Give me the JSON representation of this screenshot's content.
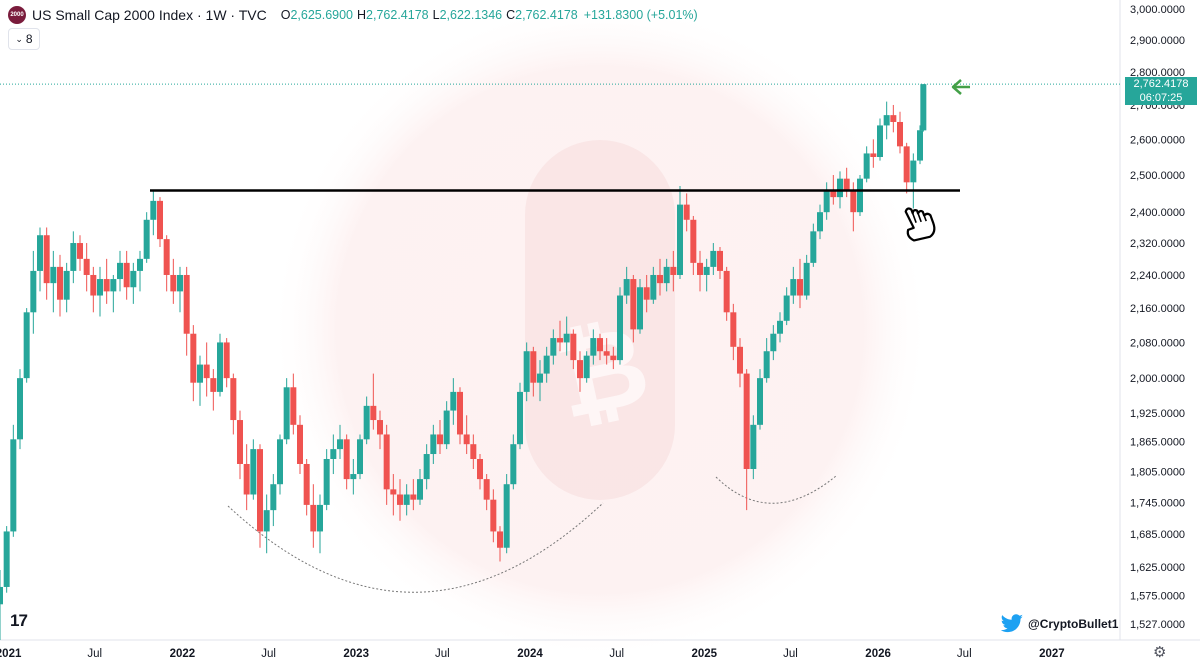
{
  "header": {
    "logo_text": "2000",
    "title": "US Small Cap 2000 Index · 1W · TVC",
    "o_label": "O",
    "o_value": "2,625.6900",
    "h_label": "H",
    "h_value": "2,762.4178",
    "l_label": "L",
    "l_value": "2,622.1346",
    "c_label": "C",
    "c_value": "2,762.4178",
    "change": "+131.8300 (+5.01%)"
  },
  "interval_button": {
    "label": "8"
  },
  "price_tag": {
    "price": "2,762.4178",
    "countdown": "06:07:25"
  },
  "tv_logo": "17",
  "watermark_handle": "@CryptoBullet1",
  "colors": {
    "up": "#26a69a",
    "down": "#ef5350",
    "resistance": "#000000",
    "arrow": "#43a047"
  },
  "icons": [
    "twitter-bird-icon",
    "gear-icon",
    "hand-pointing-icon",
    "left-arrow-icon",
    "chevron-down-icon"
  ],
  "chart_data": {
    "type": "candlestick",
    "timeframe": "1W",
    "y_scale": "log",
    "ylim": [
      1500,
      3030
    ],
    "xlim": [
      "2020-12-14",
      "2027-03-01"
    ],
    "y_ticks": [
      3000,
      2900,
      2800,
      2700,
      2600,
      2500,
      2400,
      2320,
      2240,
      2160,
      2080,
      2000,
      1925,
      1865,
      1805,
      1745,
      1685,
      1625,
      1575,
      1527
    ],
    "y_tick_labels": [
      "3,000.0000",
      "2,900.0000",
      "2,800.0000",
      "2,700.0000",
      "2,600.0000",
      "2,500.0000",
      "2,400.0000",
      "2,320.0000",
      "2,240.0000",
      "2,160.0000",
      "2,080.0000",
      "2,000.0000",
      "1,925.0000",
      "1,865.0000",
      "1,805.0000",
      "1,745.0000",
      "1,685.0000",
      "1,625.0000",
      "1,575.0000",
      "1,527.0000"
    ],
    "x_ticks": [
      {
        "date": "2021-01-01",
        "label": "2021"
      },
      {
        "date": "2021-07-01",
        "label": "Jul"
      },
      {
        "date": "2022-01-01",
        "label": "2022"
      },
      {
        "date": "2022-07-01",
        "label": "Jul"
      },
      {
        "date": "2023-01-01",
        "label": "2023"
      },
      {
        "date": "2023-07-01",
        "label": "Jul"
      },
      {
        "date": "2024-01-01",
        "label": "2024"
      },
      {
        "date": "2024-07-01",
        "label": "Jul"
      },
      {
        "date": "2025-01-01",
        "label": "2025"
      },
      {
        "date": "2025-07-01",
        "label": "Jul"
      },
      {
        "date": "2026-01-01",
        "label": "2026"
      },
      {
        "date": "2026-07-01",
        "label": "Jul"
      },
      {
        "date": "2027-01-01",
        "label": "2027"
      }
    ],
    "series": [
      {
        "columns": [
          "date",
          "open",
          "high",
          "low",
          "close"
        ],
        "candles": [
          [
            "2020-12-14",
            1560,
            1620,
            1500,
            1590
          ],
          [
            "2020-12-28",
            1590,
            1700,
            1580,
            1690
          ],
          [
            "2021-01-11",
            1690,
            1900,
            1680,
            1870
          ],
          [
            "2021-01-25",
            1870,
            2020,
            1850,
            2000
          ],
          [
            "2021-02-08",
            2000,
            2160,
            1990,
            2150
          ],
          [
            "2021-02-22",
            2150,
            2300,
            2100,
            2250
          ],
          [
            "2021-03-08",
            2250,
            2360,
            2200,
            2340
          ],
          [
            "2021-03-22",
            2340,
            2360,
            2180,
            2220
          ],
          [
            "2021-04-05",
            2220,
            2300,
            2150,
            2260
          ],
          [
            "2021-04-19",
            2260,
            2290,
            2140,
            2180
          ],
          [
            "2021-05-03",
            2180,
            2270,
            2150,
            2250
          ],
          [
            "2021-05-17",
            2250,
            2350,
            2220,
            2320
          ],
          [
            "2021-05-31",
            2320,
            2340,
            2250,
            2280
          ],
          [
            "2021-06-14",
            2280,
            2320,
            2200,
            2240
          ],
          [
            "2021-06-28",
            2240,
            2260,
            2150,
            2190
          ],
          [
            "2021-07-12",
            2190,
            2260,
            2140,
            2230
          ],
          [
            "2021-07-26",
            2230,
            2280,
            2170,
            2200
          ],
          [
            "2021-08-09",
            2200,
            2240,
            2150,
            2230
          ],
          [
            "2021-08-23",
            2230,
            2300,
            2200,
            2270
          ],
          [
            "2021-09-06",
            2270,
            2300,
            2180,
            2210
          ],
          [
            "2021-09-20",
            2210,
            2270,
            2170,
            2250
          ],
          [
            "2021-10-04",
            2250,
            2300,
            2200,
            2280
          ],
          [
            "2021-10-18",
            2280,
            2400,
            2270,
            2380
          ],
          [
            "2021-11-01",
            2380,
            2458,
            2340,
            2430
          ],
          [
            "2021-11-15",
            2430,
            2440,
            2310,
            2330
          ],
          [
            "2021-11-29",
            2330,
            2340,
            2200,
            2240
          ],
          [
            "2021-12-13",
            2240,
            2280,
            2170,
            2200
          ],
          [
            "2021-12-27",
            2200,
            2260,
            2150,
            2240
          ],
          [
            "2022-01-10",
            2240,
            2260,
            2050,
            2100
          ],
          [
            "2022-01-24",
            2100,
            2120,
            1950,
            1990
          ],
          [
            "2022-02-07",
            1990,
            2050,
            1940,
            2030
          ],
          [
            "2022-02-21",
            2030,
            2080,
            1960,
            2000
          ],
          [
            "2022-03-07",
            2000,
            2020,
            1930,
            1970
          ],
          [
            "2022-03-21",
            1970,
            2100,
            1960,
            2080
          ],
          [
            "2022-04-04",
            2080,
            2090,
            1980,
            2000
          ],
          [
            "2022-04-18",
            2000,
            2010,
            1880,
            1910
          ],
          [
            "2022-05-02",
            1910,
            1930,
            1790,
            1820
          ],
          [
            "2022-05-16",
            1820,
            1860,
            1730,
            1760
          ],
          [
            "2022-05-30",
            1760,
            1870,
            1750,
            1850
          ],
          [
            "2022-06-13",
            1850,
            1860,
            1660,
            1690
          ],
          [
            "2022-06-27",
            1690,
            1760,
            1650,
            1730
          ],
          [
            "2022-07-11",
            1730,
            1800,
            1700,
            1780
          ],
          [
            "2022-07-25",
            1780,
            1880,
            1760,
            1870
          ],
          [
            "2022-08-08",
            1870,
            2000,
            1860,
            1980
          ],
          [
            "2022-08-22",
            1980,
            2010,
            1880,
            1900
          ],
          [
            "2022-09-05",
            1900,
            1920,
            1800,
            1820
          ],
          [
            "2022-09-19",
            1820,
            1830,
            1720,
            1740
          ],
          [
            "2022-10-03",
            1740,
            1780,
            1660,
            1690
          ],
          [
            "2022-10-17",
            1690,
            1760,
            1650,
            1740
          ],
          [
            "2022-10-31",
            1740,
            1850,
            1730,
            1830
          ],
          [
            "2022-11-14",
            1830,
            1880,
            1800,
            1850
          ],
          [
            "2022-11-28",
            1850,
            1900,
            1830,
            1870
          ],
          [
            "2022-12-12",
            1870,
            1880,
            1770,
            1790
          ],
          [
            "2022-12-26",
            1790,
            1830,
            1760,
            1800
          ],
          [
            "2023-01-09",
            1800,
            1880,
            1790,
            1870
          ],
          [
            "2023-01-23",
            1870,
            1960,
            1860,
            1940
          ],
          [
            "2023-02-06",
            1940,
            2010,
            1890,
            1910
          ],
          [
            "2023-02-20",
            1910,
            1930,
            1850,
            1880
          ],
          [
            "2023-03-06",
            1880,
            1900,
            1740,
            1770
          ],
          [
            "2023-03-20",
            1770,
            1800,
            1720,
            1760
          ],
          [
            "2023-04-03",
            1760,
            1790,
            1710,
            1740
          ],
          [
            "2023-04-17",
            1740,
            1780,
            1720,
            1760
          ],
          [
            "2023-05-01",
            1760,
            1790,
            1730,
            1750
          ],
          [
            "2023-05-15",
            1750,
            1810,
            1740,
            1790
          ],
          [
            "2023-05-29",
            1790,
            1860,
            1770,
            1840
          ],
          [
            "2023-06-12",
            1840,
            1900,
            1820,
            1880
          ],
          [
            "2023-06-26",
            1880,
            1910,
            1840,
            1860
          ],
          [
            "2023-07-10",
            1860,
            1950,
            1850,
            1930
          ],
          [
            "2023-07-24",
            1930,
            2000,
            1900,
            1970
          ],
          [
            "2023-08-07",
            1970,
            1980,
            1860,
            1880
          ],
          [
            "2023-08-21",
            1880,
            1920,
            1840,
            1860
          ],
          [
            "2023-09-04",
            1860,
            1880,
            1810,
            1830
          ],
          [
            "2023-09-18",
            1830,
            1840,
            1770,
            1790
          ],
          [
            "2023-10-02",
            1790,
            1800,
            1730,
            1750
          ],
          [
            "2023-10-16",
            1750,
            1770,
            1670,
            1690
          ],
          [
            "2023-10-30",
            1690,
            1700,
            1635,
            1660
          ],
          [
            "2023-11-13",
            1660,
            1800,
            1650,
            1780
          ],
          [
            "2023-11-27",
            1780,
            1880,
            1770,
            1860
          ],
          [
            "2023-12-11",
            1860,
            1990,
            1850,
            1970
          ],
          [
            "2023-12-25",
            1970,
            2080,
            1950,
            2060
          ],
          [
            "2024-01-08",
            2060,
            2070,
            1960,
            1990
          ],
          [
            "2024-01-22",
            1990,
            2040,
            1950,
            2010
          ],
          [
            "2024-02-05",
            2010,
            2070,
            1990,
            2050
          ],
          [
            "2024-02-19",
            2050,
            2110,
            2030,
            2090
          ],
          [
            "2024-03-04",
            2090,
            2130,
            2060,
            2080
          ],
          [
            "2024-03-18",
            2080,
            2140,
            2050,
            2100
          ],
          [
            "2024-04-01",
            2100,
            2110,
            2020,
            2040
          ],
          [
            "2024-04-15",
            2040,
            2060,
            1970,
            2000
          ],
          [
            "2024-04-29",
            2000,
            2060,
            1990,
            2050
          ],
          [
            "2024-05-13",
            2050,
            2110,
            2030,
            2090
          ],
          [
            "2024-05-27",
            2090,
            2100,
            2040,
            2060
          ],
          [
            "2024-06-10",
            2060,
            2090,
            2030,
            2050
          ],
          [
            "2024-06-24",
            2050,
            2070,
            2020,
            2040
          ],
          [
            "2024-07-08",
            2040,
            2210,
            2030,
            2190
          ],
          [
            "2024-07-22",
            2190,
            2260,
            2170,
            2230
          ],
          [
            "2024-08-05",
            2230,
            2240,
            2080,
            2110
          ],
          [
            "2024-08-19",
            2110,
            2230,
            2100,
            2210
          ],
          [
            "2024-09-02",
            2210,
            2240,
            2150,
            2180
          ],
          [
            "2024-09-16",
            2180,
            2260,
            2170,
            2240
          ],
          [
            "2024-09-30",
            2240,
            2280,
            2190,
            2220
          ],
          [
            "2024-10-14",
            2220,
            2280,
            2200,
            2260
          ],
          [
            "2024-10-28",
            2260,
            2300,
            2200,
            2240
          ],
          [
            "2024-11-11",
            2240,
            2470,
            2230,
            2420
          ],
          [
            "2024-11-25",
            2420,
            2450,
            2350,
            2380
          ],
          [
            "2024-12-09",
            2380,
            2390,
            2240,
            2270
          ],
          [
            "2024-12-23",
            2270,
            2300,
            2200,
            2240
          ],
          [
            "2025-01-06",
            2240,
            2280,
            2200,
            2260
          ],
          [
            "2025-01-20",
            2260,
            2320,
            2240,
            2300
          ],
          [
            "2025-02-03",
            2300,
            2310,
            2230,
            2250
          ],
          [
            "2025-02-17",
            2250,
            2260,
            2130,
            2150
          ],
          [
            "2025-03-03",
            2150,
            2170,
            2040,
            2070
          ],
          [
            "2025-03-17",
            2070,
            2090,
            1980,
            2010
          ],
          [
            "2025-03-31",
            2010,
            2020,
            1730,
            1810
          ],
          [
            "2025-04-14",
            1810,
            1920,
            1790,
            1900
          ],
          [
            "2025-04-28",
            1900,
            2020,
            1890,
            2000
          ],
          [
            "2025-05-12",
            2000,
            2090,
            1990,
            2060
          ],
          [
            "2025-05-26",
            2060,
            2120,
            2040,
            2100
          ],
          [
            "2025-06-09",
            2100,
            2150,
            2080,
            2130
          ],
          [
            "2025-06-23",
            2130,
            2210,
            2120,
            2190
          ],
          [
            "2025-07-07",
            2190,
            2260,
            2170,
            2230
          ],
          [
            "2025-07-21",
            2230,
            2280,
            2160,
            2190
          ],
          [
            "2025-08-04",
            2190,
            2290,
            2180,
            2270
          ],
          [
            "2025-08-18",
            2270,
            2370,
            2260,
            2350
          ],
          [
            "2025-09-01",
            2350,
            2420,
            2330,
            2400
          ],
          [
            "2025-09-15",
            2400,
            2480,
            2380,
            2460
          ],
          [
            "2025-09-29",
            2460,
            2500,
            2420,
            2440
          ],
          [
            "2025-10-13",
            2440,
            2510,
            2410,
            2490
          ],
          [
            "2025-10-27",
            2490,
            2520,
            2440,
            2460
          ],
          [
            "2025-11-10",
            2460,
            2480,
            2350,
            2400
          ],
          [
            "2025-11-24",
            2400,
            2500,
            2390,
            2490
          ],
          [
            "2025-12-08",
            2490,
            2580,
            2480,
            2560
          ],
          [
            "2025-12-22",
            2560,
            2600,
            2520,
            2550
          ],
          [
            "2026-01-05",
            2550,
            2660,
            2540,
            2640
          ],
          [
            "2026-01-19",
            2640,
            2710,
            2600,
            2670
          ],
          [
            "2026-02-02",
            2670,
            2700,
            2620,
            2650
          ],
          [
            "2026-02-16",
            2650,
            2680,
            2560,
            2580
          ],
          [
            "2026-03-02",
            2580,
            2590,
            2450,
            2480
          ],
          [
            "2026-03-16",
            2480,
            2560,
            2410,
            2540
          ],
          [
            "2026-03-30",
            2540,
            2640,
            2530,
            2626
          ],
          [
            "2026-04-06",
            2625.69,
            2762.4178,
            2622.1346,
            2762.4178
          ]
        ]
      }
    ],
    "annotations": {
      "resistance_level": 2458,
      "current_price": 2762.4178
    }
  }
}
